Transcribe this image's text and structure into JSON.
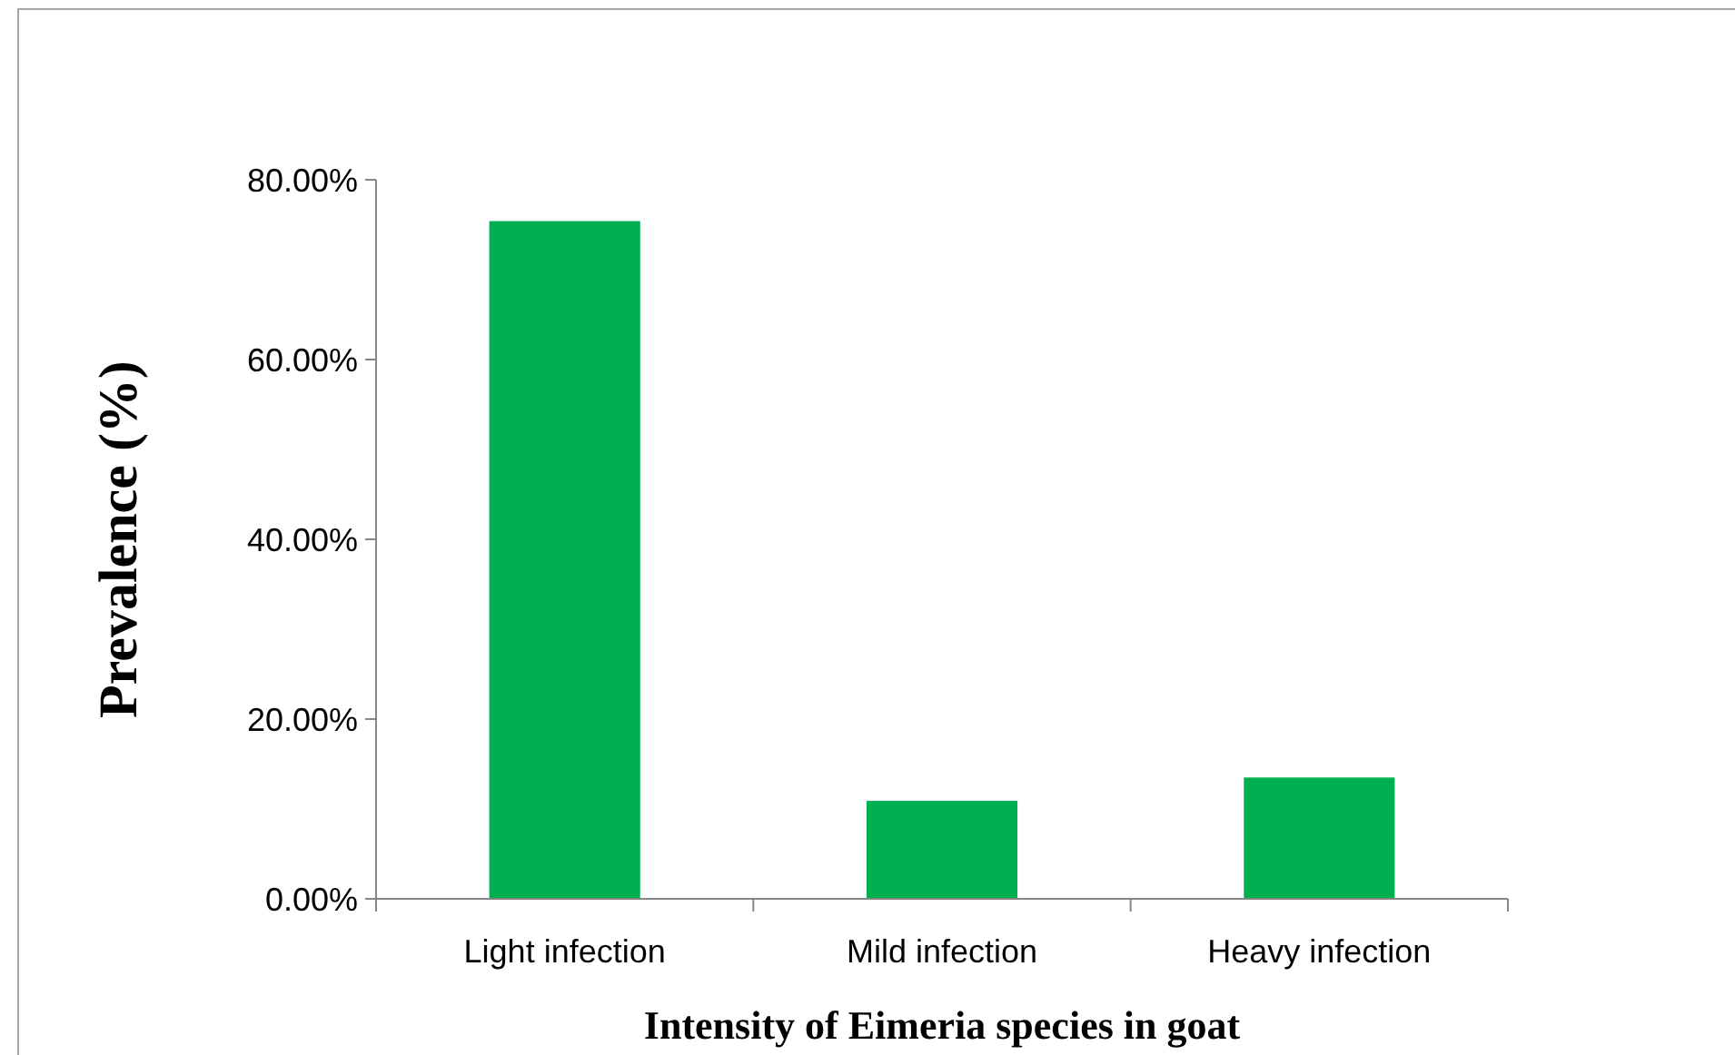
{
  "chart_data": {
    "type": "bar",
    "xlabel": "Intensity of Eimeria  species in goat",
    "ylabel": "Prevalence (%)",
    "categories": [
      "Light infection",
      "Mild infection",
      "Heavy infection"
    ],
    "values": [
      75.4,
      10.9,
      13.5
    ],
    "color": "#00b050",
    "ylim": [
      0,
      80
    ],
    "yticks": [
      {
        "value": 0,
        "label": "0.00%"
      },
      {
        "value": 20,
        "label": "20.00%"
      },
      {
        "value": 40,
        "label": "40.00%"
      },
      {
        "value": 60,
        "label": "60.00%"
      },
      {
        "value": 80,
        "label": "80.00%"
      }
    ],
    "grid": false
  }
}
